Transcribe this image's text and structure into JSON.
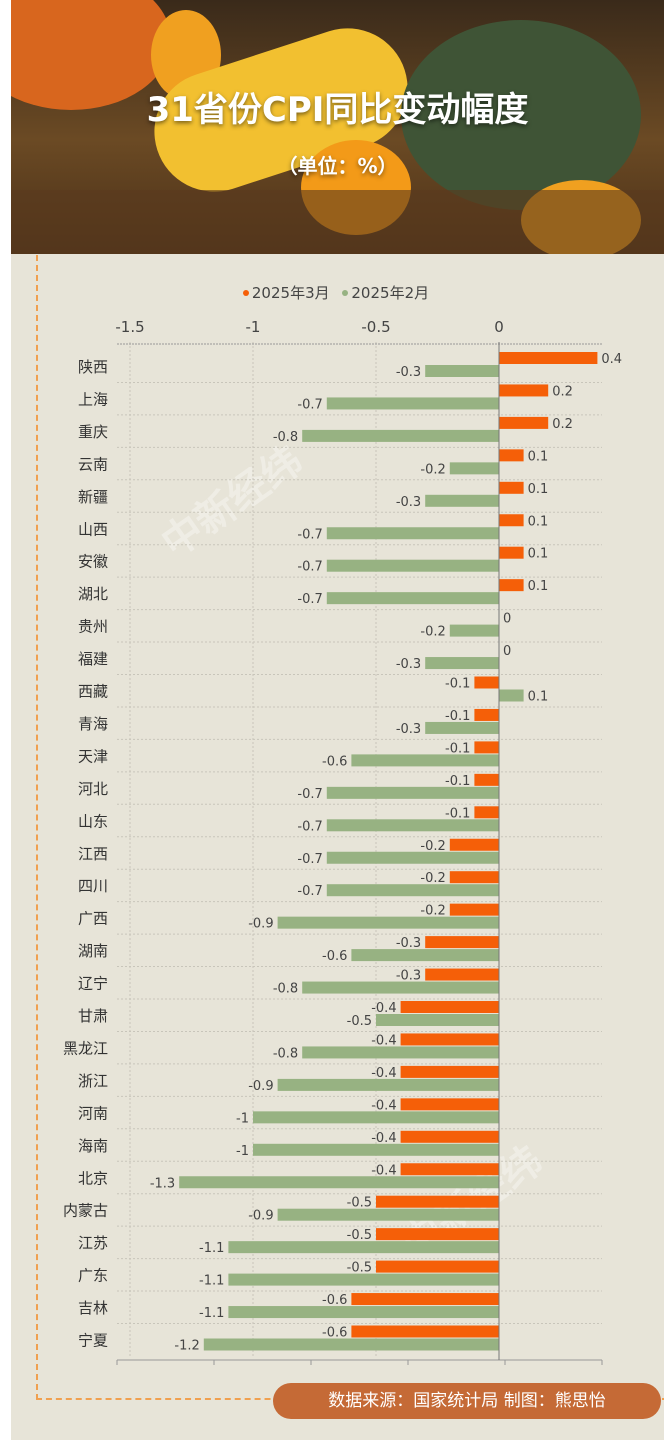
{
  "header": {
    "title": "31省份CPI同比变动幅度",
    "unit": "（单位：%）"
  },
  "footer": {
    "source": "数据来源：国家统计局  制图：熊思怡"
  },
  "watermark": "中新经纬 ECONOMIC VIEW",
  "chart_data": {
    "type": "bar",
    "orientation": "horizontal",
    "title": "31省份CPI同比变动幅度",
    "xlim": [
      -1.5,
      0.42
    ],
    "x_ticks": [
      "-1.5",
      "-1",
      "-0.5",
      "0"
    ],
    "legend_position": "top",
    "categories": [
      "陕西",
      "上海",
      "重庆",
      "云南",
      "新疆",
      "山西",
      "安徽",
      "湖北",
      "贵州",
      "福建",
      "西藏",
      "青海",
      "天津",
      "河北",
      "山东",
      "江西",
      "四川",
      "广西",
      "湖南",
      "辽宁",
      "甘肃",
      "黑龙江",
      "浙江",
      "河南",
      "海南",
      "北京",
      "内蒙古",
      "江苏",
      "广东",
      "吉林",
      "宁夏"
    ],
    "series": [
      {
        "name": "2025年3月",
        "color": "#f55f08",
        "values": [
          0.4,
          0.2,
          0.2,
          0.1,
          0.1,
          0.1,
          0.1,
          0.1,
          0,
          0,
          -0.1,
          -0.1,
          -0.1,
          -0.1,
          -0.1,
          -0.2,
          -0.2,
          -0.2,
          -0.3,
          -0.3,
          -0.4,
          -0.4,
          -0.4,
          -0.4,
          -0.4,
          -0.4,
          -0.5,
          -0.5,
          -0.5,
          -0.6,
          -0.6
        ]
      },
      {
        "name": "2025年2月",
        "color": "#97b282",
        "values": [
          -0.3,
          -0.7,
          -0.8,
          -0.2,
          -0.3,
          -0.7,
          -0.7,
          -0.7,
          -0.2,
          -0.3,
          0.1,
          -0.3,
          -0.6,
          -0.7,
          -0.7,
          -0.7,
          -0.7,
          -0.9,
          -0.6,
          -0.8,
          -0.5,
          -0.8,
          -0.9,
          -1,
          -1,
          -1.3,
          -0.9,
          -1.1,
          -1.1,
          -1.1,
          -1.2
        ]
      }
    ]
  }
}
